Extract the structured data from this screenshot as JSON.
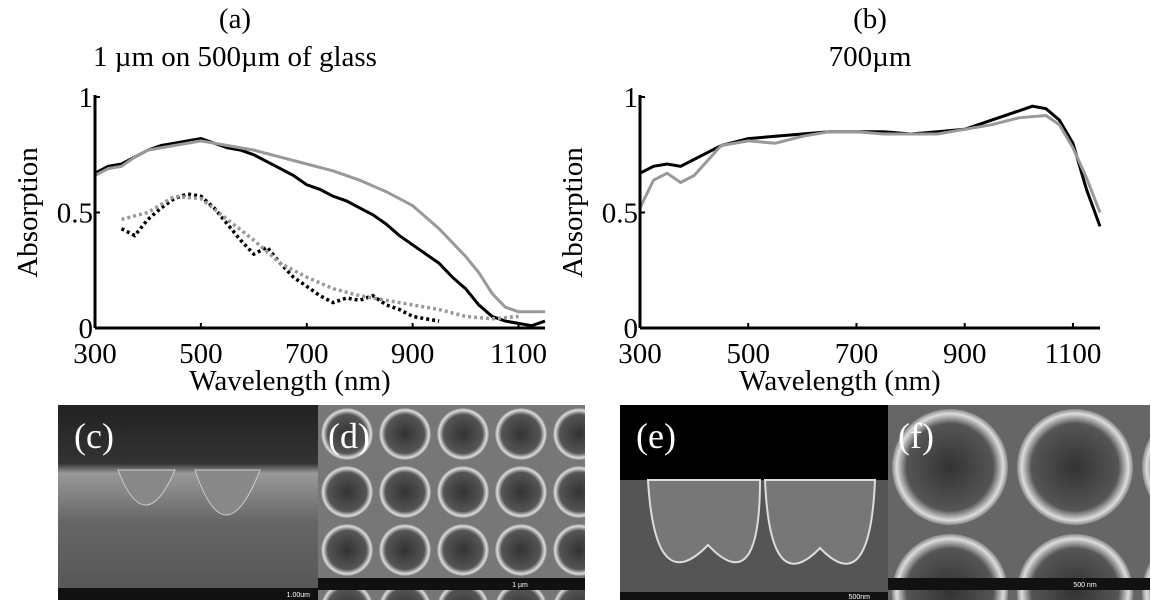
{
  "chart_data": [
    {
      "type": "line",
      "panel": "(a)",
      "title": "1 µm on 500µm of glass",
      "xlabel": "Wavelength (nm)",
      "ylabel": "Absorption",
      "xlim": [
        300,
        1150
      ],
      "ylim": [
        0,
        1
      ],
      "xticks": [
        300,
        500,
        700,
        900,
        1100
      ],
      "yticks": [
        0,
        0.5,
        1
      ],
      "series": [
        {
          "color": "#000000",
          "dash": "solid",
          "x": [
            300,
            325,
            350,
            375,
            400,
            425,
            450,
            475,
            500,
            525,
            550,
            575,
            600,
            625,
            650,
            675,
            700,
            725,
            750,
            775,
            800,
            825,
            850,
            875,
            900,
            925,
            950,
            975,
            1000,
            1025,
            1050,
            1075,
            1100,
            1125,
            1150
          ],
          "values": [
            0.67,
            0.7,
            0.71,
            0.74,
            0.77,
            0.79,
            0.8,
            0.81,
            0.82,
            0.8,
            0.78,
            0.77,
            0.75,
            0.72,
            0.69,
            0.66,
            0.62,
            0.6,
            0.57,
            0.55,
            0.52,
            0.49,
            0.45,
            0.4,
            0.36,
            0.32,
            0.28,
            0.22,
            0.17,
            0.1,
            0.05,
            0.03,
            0.02,
            0.01,
            0.03
          ]
        },
        {
          "color": "#999999",
          "dash": "solid",
          "x": [
            300,
            325,
            350,
            375,
            400,
            450,
            500,
            550,
            600,
            650,
            700,
            750,
            800,
            850,
            900,
            950,
            1000,
            1025,
            1050,
            1075,
            1100,
            1150
          ],
          "values": [
            0.66,
            0.69,
            0.7,
            0.74,
            0.77,
            0.79,
            0.81,
            0.79,
            0.77,
            0.74,
            0.71,
            0.68,
            0.64,
            0.59,
            0.53,
            0.43,
            0.31,
            0.24,
            0.15,
            0.09,
            0.07,
            0.07
          ]
        },
        {
          "color": "#000000",
          "dash": "dotted",
          "x": [
            350,
            375,
            400,
            425,
            450,
            475,
            500,
            525,
            550,
            575,
            600,
            625,
            650,
            675,
            700,
            725,
            750,
            775,
            800,
            825,
            850,
            875,
            900,
            925,
            950
          ],
          "values": [
            0.43,
            0.4,
            0.47,
            0.52,
            0.56,
            0.58,
            0.57,
            0.52,
            0.45,
            0.38,
            0.32,
            0.35,
            0.28,
            0.22,
            0.18,
            0.14,
            0.11,
            0.13,
            0.12,
            0.14,
            0.1,
            0.08,
            0.05,
            0.04,
            0.03
          ]
        },
        {
          "color": "#999999",
          "dash": "dotted",
          "x": [
            350,
            400,
            450,
            500,
            550,
            600,
            650,
            700,
            750,
            800,
            850,
            900,
            950,
            1000,
            1050,
            1100
          ],
          "values": [
            0.47,
            0.5,
            0.57,
            0.56,
            0.47,
            0.38,
            0.28,
            0.22,
            0.17,
            0.14,
            0.12,
            0.1,
            0.08,
            0.05,
            0.04,
            0.05
          ]
        }
      ]
    },
    {
      "type": "line",
      "panel": "(b)",
      "title": "700µm",
      "xlabel": "Wavelength (nm)",
      "ylabel": "Absorption",
      "xlim": [
        300,
        1150
      ],
      "ylim": [
        0,
        1
      ],
      "xticks": [
        300,
        500,
        700,
        900,
        1100
      ],
      "yticks": [
        0,
        0.5,
        1
      ],
      "series": [
        {
          "color": "#000000",
          "dash": "solid",
          "x": [
            300,
            325,
            350,
            375,
            400,
            450,
            500,
            550,
            600,
            650,
            700,
            750,
            800,
            850,
            900,
            950,
            1000,
            1025,
            1050,
            1075,
            1100,
            1125,
            1150
          ],
          "values": [
            0.67,
            0.7,
            0.71,
            0.7,
            0.73,
            0.79,
            0.82,
            0.83,
            0.84,
            0.85,
            0.85,
            0.85,
            0.84,
            0.85,
            0.86,
            0.9,
            0.94,
            0.96,
            0.95,
            0.9,
            0.8,
            0.6,
            0.44
          ]
        },
        {
          "color": "#999999",
          "dash": "solid",
          "x": [
            300,
            325,
            350,
            375,
            400,
            450,
            500,
            550,
            600,
            650,
            700,
            750,
            800,
            850,
            900,
            950,
            1000,
            1050,
            1075,
            1100,
            1125,
            1150
          ],
          "values": [
            0.52,
            0.64,
            0.67,
            0.63,
            0.66,
            0.79,
            0.81,
            0.8,
            0.83,
            0.85,
            0.85,
            0.84,
            0.84,
            0.84,
            0.86,
            0.88,
            0.91,
            0.92,
            0.88,
            0.78,
            0.65,
            0.5
          ]
        }
      ]
    }
  ],
  "images": [
    {
      "label": "(c)",
      "scale": "1.00um"
    },
    {
      "label": "(d)",
      "scale": "1 µm"
    },
    {
      "label": "(e)",
      "scale": "500nm"
    },
    {
      "label": "(f)",
      "scale": "500 nm"
    }
  ]
}
